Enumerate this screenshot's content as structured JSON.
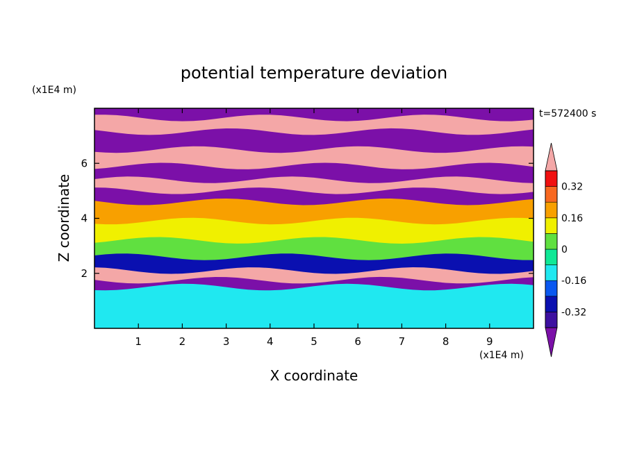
{
  "chart_data": {
    "type": "heatmap",
    "title": "potential temperature deviation",
    "xlabel": "X coordinate",
    "ylabel": "Z coordinate",
    "x_unit": "(x1E4 m)",
    "y_unit": "(x1E4 m)",
    "time_label": "t=572400 s",
    "xlim": [
      0,
      10
    ],
    "ylim": [
      0,
      8
    ],
    "x_ticks": [
      "1",
      "2",
      "3",
      "4",
      "5",
      "6",
      "7",
      "8",
      "9"
    ],
    "y_ticks": [
      "2",
      "4",
      "6"
    ],
    "colorbar": {
      "labels": [
        "0.32",
        "0.16",
        "0",
        "-0.16",
        "-0.32"
      ],
      "label_values": [
        0.32,
        0.16,
        0,
        -0.16,
        -0.32
      ],
      "boundaries": [
        -0.4,
        -0.32,
        -0.24,
        -0.16,
        -0.08,
        0,
        0.08,
        0.16,
        0.24,
        0.32,
        0.4
      ],
      "over_color": "#f4a7a7",
      "under_color": "#7b10a8",
      "colors": [
        "#3d10a0",
        "#0a10b0",
        "#0a58f0",
        "#20e8f0",
        "#10e896",
        "#60e040",
        "#f0f000",
        "#f8a000",
        "#f86820",
        "#f01010"
      ]
    },
    "bands": [
      {
        "z": [
          7.65,
          8.0
        ],
        "level": "under"
      },
      {
        "z": [
          7.15,
          7.65
        ],
        "level": "over"
      },
      {
        "z": [
          6.5,
          7.15
        ],
        "level": "under"
      },
      {
        "z": [
          5.9,
          6.5
        ],
        "level": "over"
      },
      {
        "z": [
          5.4,
          5.9
        ],
        "level": "under"
      },
      {
        "z": [
          5.0,
          5.4
        ],
        "level": "over"
      },
      {
        "z": [
          4.6,
          5.0
        ],
        "level": "under"
      },
      {
        "z": [
          3.9,
          4.6
        ],
        "level": 0.2
      },
      {
        "z": [
          3.2,
          3.9
        ],
        "level": 0.1
      },
      {
        "z": [
          2.6,
          3.2
        ],
        "level": 0.04
      },
      {
        "z": [
          2.1,
          2.6
        ],
        "level": -0.3
      },
      {
        "z": [
          1.75,
          2.1
        ],
        "level": "over"
      },
      {
        "z": [
          1.5,
          1.75
        ],
        "level": "under"
      },
      {
        "z": [
          0.0,
          1.5
        ],
        "level": -0.12
      }
    ]
  }
}
